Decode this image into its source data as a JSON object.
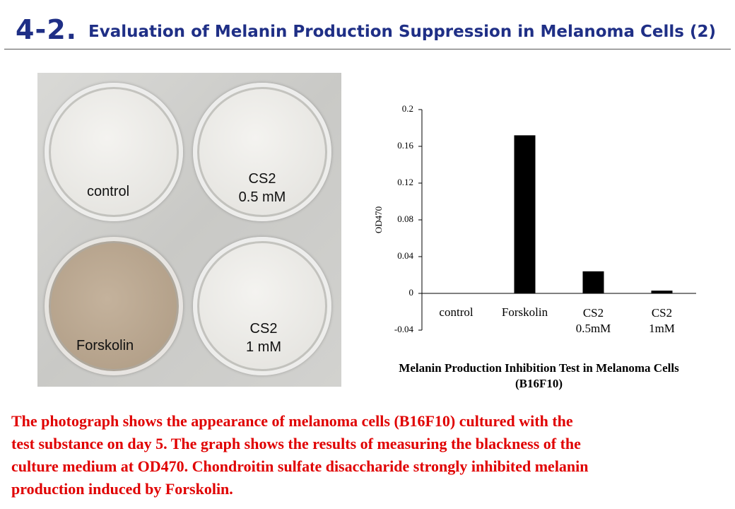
{
  "header": {
    "number": "4-2.",
    "title": "Evaluation of Melanin Production Suppression in Melanoma Cells (2)"
  },
  "photo": {
    "labels": [
      "control",
      "CS2\n0.5 mM",
      "Forskolin",
      "CS2\n1 mM"
    ]
  },
  "chart_data": {
    "type": "bar",
    "title": "Melanin Production Inhibition Test in Melanoma Cells\n(B16F10)",
    "y_label": "OD470",
    "categories": [
      "control",
      "Forskolin",
      "CS2\n0.5mM",
      "CS2\n1mM"
    ],
    "values": [
      0,
      0.172,
      0.024,
      0.003
    ],
    "color": "#000000",
    "ylim": [
      -0.04,
      0.2
    ],
    "yticks": [
      -0.04,
      0,
      0.04,
      0.08,
      0.12,
      0.16,
      0.2
    ]
  },
  "description": {
    "lines": [
      "The photograph shows the appearance of melanoma cells (B16F10) cultured with the",
      "test substance on day 5.  The graph shows the results of measuring the blackness of the",
      "culture medium at OD470.  Chondroitin sulfate disaccharide strongly inhibited melanin",
      "production induced by Forskolin."
    ]
  }
}
